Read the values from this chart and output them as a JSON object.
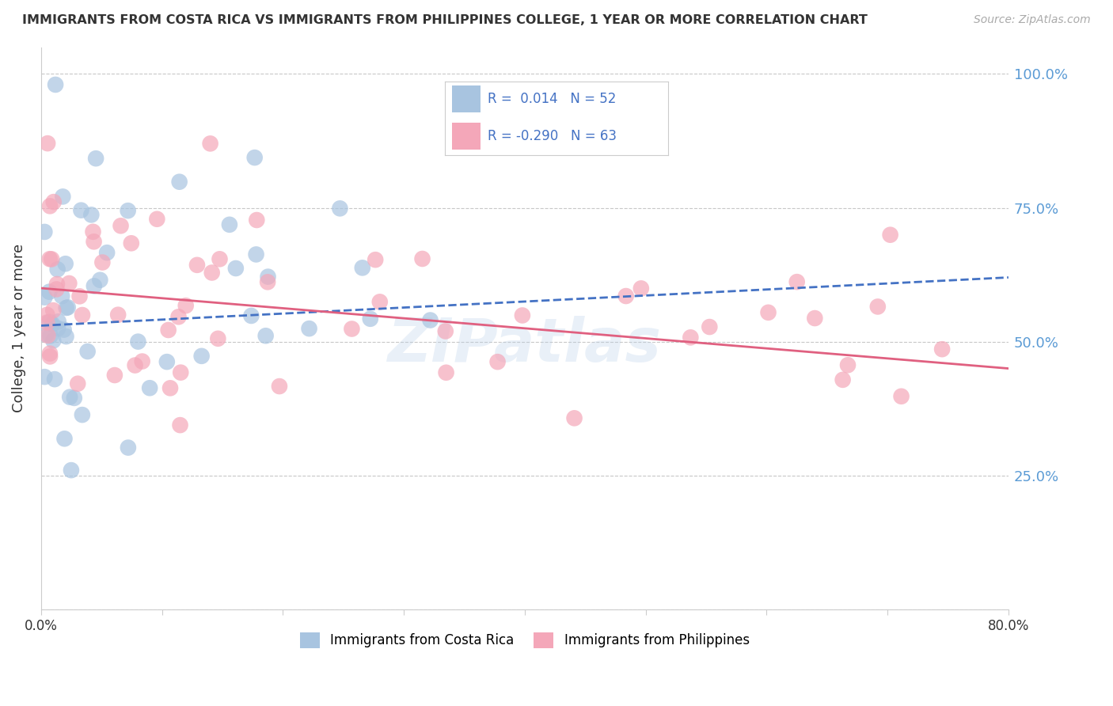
{
  "title": "IMMIGRANTS FROM COSTA RICA VS IMMIGRANTS FROM PHILIPPINES COLLEGE, 1 YEAR OR MORE CORRELATION CHART",
  "source": "Source: ZipAtlas.com",
  "ylabel": "College, 1 year or more",
  "xlim": [
    0.0,
    80.0
  ],
  "ylim": [
    0.0,
    105.0
  ],
  "yticks": [
    0.0,
    25.0,
    50.0,
    75.0,
    100.0
  ],
  "ytick_labels_right": [
    "",
    "25.0%",
    "50.0%",
    "75.0%",
    "100.0%"
  ],
  "blue_R": 0.014,
  "blue_N": 52,
  "pink_R": -0.29,
  "pink_N": 63,
  "blue_color": "#a8c4e0",
  "pink_color": "#f4a7b9",
  "blue_line_color": "#4472c4",
  "pink_line_color": "#e06080",
  "legend_label_blue": "Immigrants from Costa Rica",
  "legend_label_pink": "Immigrants from Philippines",
  "watermark": "ZIPatlas",
  "background_color": "#ffffff",
  "grid_color": "#c8c8c8",
  "blue_trend_start": 53.0,
  "blue_trend_end": 62.0,
  "pink_trend_start": 60.0,
  "pink_trend_end": 45.0
}
